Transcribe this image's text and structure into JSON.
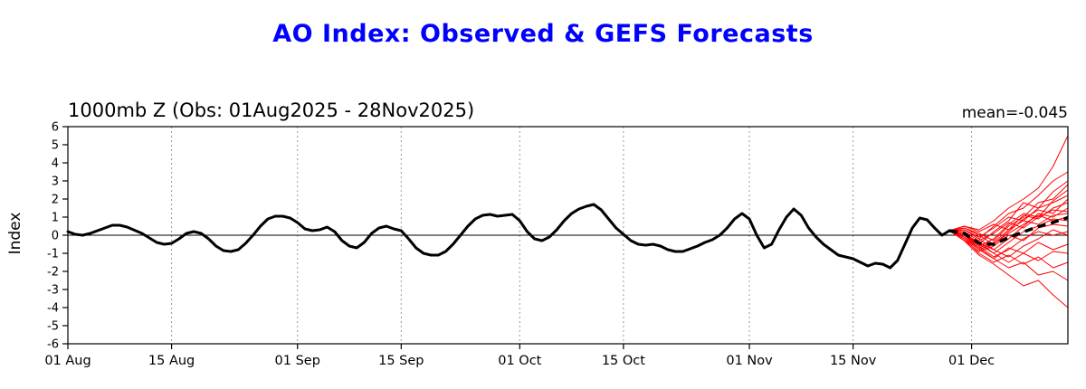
{
  "title": "AO Index: Observed & GEFS Forecasts",
  "subtitle": "1000mb Z (Obs: 01Aug2025 - 28Nov2025)",
  "mean_label": "mean=-0.045",
  "ylabel": "Index",
  "colors": {
    "title": "#0000ff",
    "observed": "#000000",
    "ensemble": "#ff0000",
    "ensemble_mean": "#000000",
    "grid": "#999999",
    "axis": "#000000"
  },
  "chart_data": {
    "type": "line",
    "title": "AO Index: Observed & GEFS Forecasts",
    "subtitle": "1000mb Z (Obs: 01Aug2025 - 28Nov2025)",
    "annotation": "mean=-0.045",
    "ylabel": "Index",
    "ylim": [
      -6,
      6
    ],
    "yticks": [
      -6,
      -5,
      -4,
      -3,
      -2,
      -1,
      0,
      1,
      2,
      3,
      4,
      5,
      6
    ],
    "x_domain_days": [
      0,
      135
    ],
    "grid": "vertical-dashed",
    "zero_line": true,
    "xticks": [
      {
        "day": 0,
        "label": "01 Aug"
      },
      {
        "day": 14,
        "label": "15 Aug"
      },
      {
        "day": 31,
        "label": "01 Sep"
      },
      {
        "day": 45,
        "label": "15 Sep"
      },
      {
        "day": 61,
        "label": "01 Oct"
      },
      {
        "day": 75,
        "label": "15 Oct"
      },
      {
        "day": 92,
        "label": "01 Nov"
      },
      {
        "day": 106,
        "label": "15 Nov"
      },
      {
        "day": 122,
        "label": "01 Dec"
      }
    ],
    "observed": {
      "name": "Observed AO index",
      "days": [
        0,
        1,
        2,
        3,
        5,
        6,
        7,
        8,
        10,
        12,
        13,
        14,
        15,
        16,
        17,
        18,
        19,
        20,
        21,
        22,
        23,
        24,
        25,
        26,
        27,
        28,
        29,
        30,
        31,
        32,
        33,
        34,
        35,
        36,
        37,
        38,
        39,
        40,
        41,
        42,
        43,
        44,
        45,
        46,
        47,
        48,
        49,
        50,
        51,
        52,
        53,
        54,
        55,
        56,
        57,
        58,
        59,
        60,
        61,
        62,
        63,
        64,
        65,
        66,
        67,
        68,
        69,
        70,
        71,
        72,
        73,
        74,
        75,
        76,
        77,
        78,
        79,
        80,
        81,
        82,
        83,
        84,
        85,
        86,
        87,
        88,
        89,
        90,
        91,
        92,
        93,
        94,
        95,
        96,
        97,
        98,
        99,
        100,
        101,
        102,
        103,
        104,
        105,
        106,
        107,
        108,
        109,
        110,
        111,
        112,
        113,
        114,
        115,
        116,
        117,
        118,
        119
      ],
      "values": [
        0.2,
        0.05,
        0.0,
        0.1,
        0.4,
        0.55,
        0.55,
        0.45,
        0.1,
        -0.4,
        -0.5,
        -0.45,
        -0.2,
        0.1,
        0.2,
        0.1,
        -0.2,
        -0.6,
        -0.85,
        -0.9,
        -0.8,
        -0.45,
        0.0,
        0.5,
        0.9,
        1.05,
        1.05,
        0.95,
        0.7,
        0.35,
        0.25,
        0.3,
        0.45,
        0.2,
        -0.3,
        -0.6,
        -0.7,
        -0.4,
        0.1,
        0.4,
        0.5,
        0.35,
        0.25,
        -0.2,
        -0.7,
        -1.0,
        -1.1,
        -1.1,
        -0.9,
        -0.5,
        0.0,
        0.5,
        0.9,
        1.1,
        1.15,
        1.05,
        1.1,
        1.15,
        0.8,
        0.2,
        -0.2,
        -0.3,
        -0.1,
        0.3,
        0.8,
        1.2,
        1.45,
        1.6,
        1.7,
        1.4,
        0.9,
        0.4,
        0.05,
        -0.3,
        -0.5,
        -0.55,
        -0.5,
        -0.6,
        -0.8,
        -0.9,
        -0.9,
        -0.75,
        -0.6,
        -0.4,
        -0.25,
        0.0,
        0.4,
        0.9,
        1.2,
        0.9,
        0.0,
        -0.7,
        -0.5,
        0.3,
        1.0,
        1.45,
        1.1,
        0.4,
        -0.1,
        -0.5,
        -0.8,
        -1.1,
        -1.2,
        -1.3,
        -1.5,
        -1.7,
        -1.55,
        -1.6,
        -1.8,
        -1.4,
        -0.5,
        0.4,
        0.95,
        0.85,
        0.4,
        0.0,
        0.25
      ]
    },
    "ensemble": {
      "name": "GEFS ensemble members",
      "days": [
        119,
        121,
        123,
        125,
        127,
        129,
        131,
        133,
        135
      ],
      "members": [
        [
          0.25,
          0.5,
          0.3,
          0.8,
          1.5,
          2.0,
          2.6,
          3.8,
          5.5
        ],
        [
          0.25,
          0.3,
          -0.2,
          0.5,
          1.2,
          1.5,
          2.2,
          3.0,
          3.5
        ],
        [
          0.25,
          0.0,
          -0.5,
          0.2,
          0.8,
          1.8,
          1.5,
          2.4,
          3.0
        ],
        [
          0.25,
          0.4,
          0.1,
          -0.3,
          0.5,
          1.0,
          1.8,
          2.0,
          2.8
        ],
        [
          0.25,
          0.1,
          -0.6,
          -0.2,
          0.6,
          1.2,
          1.0,
          1.9,
          2.5
        ],
        [
          0.25,
          0.3,
          -0.1,
          0.4,
          1.0,
          0.8,
          1.5,
          1.8,
          2.2
        ],
        [
          0.25,
          -0.2,
          -0.8,
          -0.5,
          0.2,
          0.9,
          1.4,
          1.2,
          2.0
        ],
        [
          0.25,
          0.5,
          0.2,
          0.6,
          0.3,
          1.1,
          0.9,
          1.5,
          1.8
        ],
        [
          0.25,
          0.0,
          -0.4,
          -0.8,
          -0.2,
          0.5,
          1.2,
          1.0,
          1.5
        ],
        [
          0.25,
          0.2,
          -0.3,
          0.1,
          0.7,
          0.4,
          1.0,
          1.4,
          1.3
        ],
        [
          0.25,
          -0.1,
          -0.7,
          -0.4,
          0.3,
          0.8,
          0.6,
          1.1,
          1.2
        ],
        [
          0.25,
          0.4,
          0.0,
          -0.5,
          0.1,
          0.6,
          1.1,
          0.8,
          1.0
        ],
        [
          0.25,
          0.1,
          -0.5,
          -1.0,
          -0.4,
          0.2,
          0.5,
          0.9,
          0.8
        ],
        [
          0.25,
          -0.3,
          -0.9,
          -0.6,
          0.0,
          -0.3,
          0.4,
          0.6,
          0.5
        ],
        [
          0.25,
          0.0,
          -0.6,
          -1.2,
          -0.8,
          -0.2,
          0.2,
          0.0,
          0.2
        ],
        [
          0.25,
          0.3,
          -0.2,
          -0.8,
          -1.2,
          -0.6,
          -0.2,
          0.3,
          0.0
        ],
        [
          0.25,
          -0.1,
          -0.8,
          -1.3,
          -0.7,
          -1.0,
          -0.4,
          -0.8,
          -0.5
        ],
        [
          0.25,
          0.1,
          -0.4,
          -1.0,
          -1.5,
          -1.0,
          -1.4,
          -0.9,
          -1.0
        ],
        [
          0.25,
          -0.2,
          -1.0,
          -1.5,
          -1.1,
          -1.6,
          -1.2,
          -1.8,
          -1.5
        ],
        [
          0.25,
          0.0,
          -0.7,
          -1.3,
          -1.8,
          -1.5,
          -2.2,
          -2.0,
          -2.5
        ],
        [
          0.25,
          -0.3,
          -1.1,
          -1.6,
          -2.2,
          -2.8,
          -2.5,
          -3.3,
          -4.0
        ]
      ]
    },
    "ensemble_mean": {
      "name": "GEFS ensemble mean",
      "days": [
        119,
        121,
        123,
        125,
        127,
        129,
        131,
        133,
        135
      ],
      "values": [
        0.25,
        0.1,
        -0.44,
        -0.5,
        -0.13,
        0.18,
        0.48,
        0.71,
        0.97
      ]
    },
    "legend_position": "none"
  }
}
